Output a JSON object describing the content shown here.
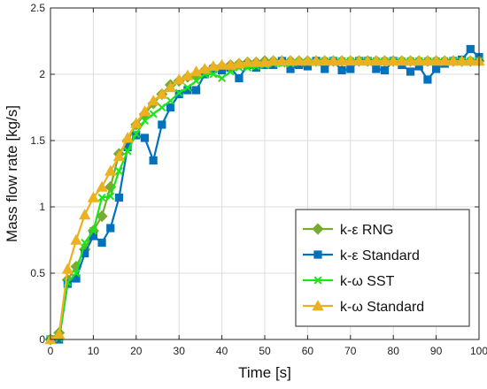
{
  "chart_data": {
    "type": "line",
    "xlabel": "Time [s]",
    "ylabel": "Mass flow rate [kg/s]",
    "xlim": [
      0,
      100
    ],
    "ylim": [
      0,
      2.5
    ],
    "xticks": [
      0,
      10,
      20,
      30,
      40,
      50,
      60,
      70,
      80,
      90,
      100
    ],
    "yticks": [
      0,
      0.5,
      1,
      1.5,
      2,
      2.5
    ],
    "grid": true,
    "legend_position": "bottom-right",
    "series": [
      {
        "name": "k-ε RNG",
        "color": "#77ac30",
        "marker": "diamond",
        "x": [
          0,
          2,
          4,
          6,
          8,
          10,
          12,
          14,
          16,
          18,
          20,
          22,
          24,
          26,
          28,
          30,
          32,
          34,
          36,
          38,
          40,
          42,
          44,
          46,
          48,
          50,
          52,
          54,
          56,
          58,
          60,
          62,
          64,
          66,
          68,
          70,
          72,
          74,
          76,
          78,
          80,
          82,
          84,
          86,
          88,
          90,
          92,
          94,
          96,
          98,
          100
        ],
        "y": [
          0,
          0.05,
          0.45,
          0.55,
          0.68,
          0.82,
          0.93,
          1.15,
          1.4,
          1.5,
          1.62,
          1.7,
          1.78,
          1.85,
          1.92,
          1.95,
          1.98,
          2.0,
          2.03,
          2.05,
          2.06,
          2.07,
          2.08,
          2.09,
          2.09,
          2.1,
          2.1,
          2.1,
          2.1,
          2.1,
          2.1,
          2.1,
          2.1,
          2.1,
          2.1,
          2.1,
          2.1,
          2.1,
          2.1,
          2.1,
          2.1,
          2.1,
          2.1,
          2.1,
          2.1,
          2.1,
          2.1,
          2.1,
          2.1,
          2.1,
          2.1
        ]
      },
      {
        "name": "k-ε Standard",
        "color": "#0072bd",
        "marker": "square",
        "x": [
          0,
          2,
          4,
          6,
          8,
          10,
          12,
          14,
          16,
          18,
          20,
          22,
          24,
          26,
          28,
          30,
          32,
          34,
          36,
          38,
          40,
          42,
          44,
          46,
          48,
          50,
          52,
          54,
          56,
          58,
          60,
          62,
          64,
          66,
          68,
          70,
          72,
          74,
          76,
          78,
          80,
          82,
          84,
          86,
          88,
          90,
          92,
          94,
          96,
          98,
          100
        ],
        "y": [
          0,
          0,
          0.42,
          0.46,
          0.65,
          0.78,
          0.73,
          0.84,
          1.07,
          1.45,
          1.54,
          1.52,
          1.35,
          1.62,
          1.75,
          1.85,
          1.88,
          1.88,
          2.0,
          2.04,
          2.03,
          2.05,
          1.97,
          2.07,
          2.05,
          2.07,
          2.07,
          2.1,
          2.04,
          2.07,
          2.06,
          2.1,
          2.04,
          2.1,
          2.03,
          2.04,
          2.1,
          2.1,
          2.04,
          2.03,
          2.1,
          2.07,
          2.02,
          2.06,
          1.96,
          2.04,
          2.08,
          2.1,
          2.11,
          2.19,
          2.13
        ]
      },
      {
        "name": "k-ω SST",
        "color": "#19e619",
        "marker": "x",
        "x": [
          0,
          2,
          4,
          6,
          8,
          10,
          12,
          14,
          16,
          18,
          20,
          22,
          24,
          26,
          28,
          30,
          32,
          34,
          36,
          38,
          40,
          42,
          44,
          46,
          48,
          50,
          52,
          54,
          56,
          58,
          60,
          62,
          64,
          66,
          68,
          70,
          72,
          74,
          76,
          78,
          80,
          82,
          84,
          86,
          88,
          90,
          92,
          94,
          96,
          98,
          100
        ],
        "y": [
          0,
          0.01,
          0.43,
          0.5,
          0.73,
          0.82,
          1.07,
          1.08,
          1.27,
          1.42,
          1.55,
          1.65,
          1.7,
          1.75,
          1.8,
          1.86,
          1.9,
          1.95,
          2.0,
          2.0,
          1.97,
          2.02,
          2.05,
          2.05,
          2.06,
          2.07,
          2.08,
          2.08,
          2.08,
          2.09,
          2.09,
          2.09,
          2.1,
          2.1,
          2.1,
          2.1,
          2.1,
          2.1,
          2.1,
          2.1,
          2.1,
          2.1,
          2.1,
          2.1,
          2.1,
          2.1,
          2.1,
          2.1,
          2.1,
          2.1,
          2.1
        ]
      },
      {
        "name": "k-ω Standard",
        "color": "#edb120",
        "marker": "triangle",
        "x": [
          0,
          2,
          4,
          6,
          8,
          10,
          12,
          14,
          16,
          18,
          20,
          22,
          24,
          26,
          28,
          30,
          32,
          34,
          36,
          38,
          40,
          42,
          44,
          46,
          48,
          50,
          52,
          54,
          56,
          58,
          60,
          62,
          64,
          66,
          68,
          70,
          72,
          74,
          76,
          78,
          80,
          82,
          84,
          86,
          88,
          90,
          92,
          94,
          96,
          98,
          100
        ],
        "y": [
          0,
          0.04,
          0.53,
          0.75,
          0.94,
          1.07,
          1.15,
          1.27,
          1.38,
          1.52,
          1.63,
          1.72,
          1.8,
          1.85,
          1.9,
          1.96,
          1.99,
          2.02,
          2.04,
          2.06,
          2.07,
          2.07,
          2.08,
          2.09,
          2.09,
          2.09,
          2.1,
          2.1,
          2.1,
          2.1,
          2.1,
          2.1,
          2.1,
          2.1,
          2.1,
          2.1,
          2.1,
          2.1,
          2.1,
          2.1,
          2.1,
          2.1,
          2.1,
          2.1,
          2.1,
          2.1,
          2.1,
          2.1,
          2.1,
          2.1,
          2.1
        ]
      }
    ]
  }
}
